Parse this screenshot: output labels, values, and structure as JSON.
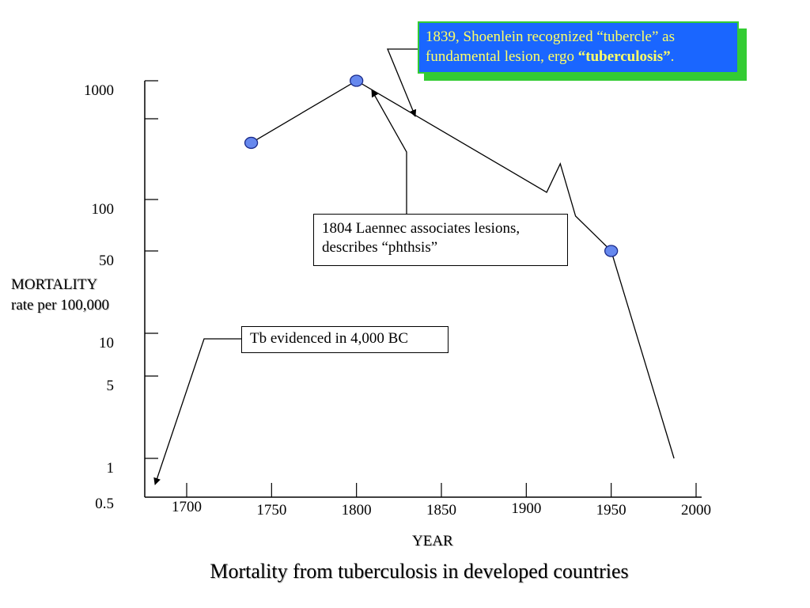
{
  "chart_data": {
    "type": "line",
    "title": "Mortality from tuberculosis in developed countries",
    "xlabel": "YEAR",
    "ylabel_line1": "MORTALITY",
    "ylabel_line2": "rate per 100,000",
    "x_ticks": [
      "1700",
      "1750",
      "1800",
      "1850",
      "1900",
      "1950",
      "2000"
    ],
    "y_ticks": [
      "1000",
      "100",
      "50",
      "10",
      "5",
      "1",
      "0.5"
    ],
    "xlim": [
      1700,
      2000
    ],
    "y_scale": "log",
    "series": [
      {
        "points": [
          {
            "x": 1738,
            "y": 300
          },
          {
            "x": 1800,
            "y": 1000
          },
          {
            "x": 1912,
            "y": 115
          },
          {
            "x": 1920,
            "y": 200
          },
          {
            "x": 1929,
            "y": 80
          },
          {
            "x": 1950,
            "y": 50
          },
          {
            "x": 1987,
            "y": 1
          }
        ],
        "markers": [
          {
            "x": 1738,
            "y": 300
          },
          {
            "x": 1800,
            "y": 1000
          },
          {
            "x": 1950,
            "y": 50
          }
        ]
      }
    ],
    "marker_color": "#6688ee",
    "annotations": {
      "laennec": {
        "line1": "1804 Laennec associates lesions,",
        "line2": "describes “phthsis”"
      },
      "bc": {
        "text": "Tb evidenced in 4,000 BC"
      },
      "shoenlein": {
        "text1": "1839, Shoenlein recognized “tubercle” as",
        "text2": "fundamental lesion, ergo ",
        "bold": "“tuberculosis”",
        "after": "."
      }
    },
    "colors": {
      "callout_fill": "#1a66ff",
      "callout_text": "#ffff66",
      "callout_shadow": "#33cc33"
    }
  }
}
